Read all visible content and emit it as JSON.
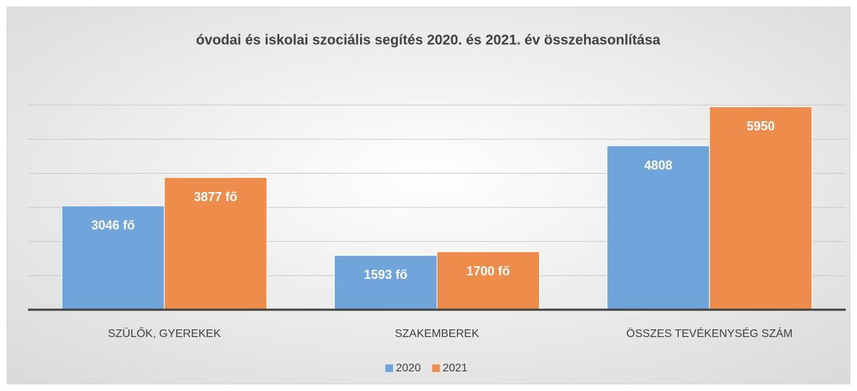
{
  "chart_data": {
    "type": "bar",
    "title": "óvodai és iskolai szociális segítés 2020. és 2021. év összehasonlítása",
    "categories": [
      "SZÜLŐK, GYEREKEK",
      "SZAKEMBEREK",
      "ÖSSZES TEVÉKENYSÉG SZÁM"
    ],
    "series": [
      {
        "name": "2020",
        "color": "#6fa5da",
        "values": [
          3046,
          1593,
          4808
        ],
        "value_labels": [
          "3046 fő",
          "1593 fő",
          "4808"
        ]
      },
      {
        "name": "2021",
        "color": "#ee8c4b",
        "values": [
          3877,
          1700,
          5950
        ],
        "value_labels": [
          "3877 fő",
          "1700 fő",
          "5950"
        ]
      }
    ],
    "ylim": [
      0,
      6000
    ],
    "yticks": [
      0,
      1000,
      2000,
      3000,
      4000,
      5000,
      6000
    ],
    "grid": true,
    "legend": "bottom"
  }
}
